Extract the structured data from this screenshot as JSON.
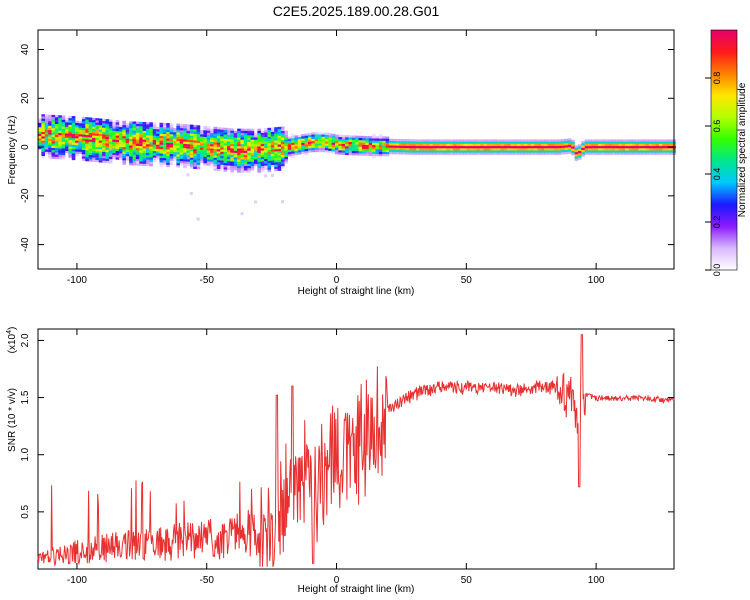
{
  "figure": {
    "title": "C2E5.2025.189.00.28.G01"
  },
  "colors": {
    "colormap": [
      "#ffffff",
      "#d9b8ff",
      "#8c1aff",
      "#1a1aff",
      "#00c8ff",
      "#00e68c",
      "#33ff00",
      "#b3ff00",
      "#ffe600",
      "#ff8000",
      "#ff1a1a",
      "#e6006e"
    ],
    "snr_line": "#e83030",
    "axes": "#000000"
  },
  "chart_data": [
    {
      "type": "heatmap",
      "xlabel": "Height of straight line (km)",
      "ylabel": "Frequency (Hz)",
      "xlim": [
        -115,
        130
      ],
      "ylim": [
        -50,
        48
      ],
      "xticks": [
        -100,
        -50,
        0,
        50,
        100
      ],
      "yticks": [
        -40,
        -20,
        0,
        20,
        40
      ],
      "colorbar": {
        "label": "Normalized spectral amplitude",
        "range": [
          0.0,
          1.0
        ],
        "ticks": [
          0.0,
          0.2,
          0.4,
          0.6,
          0.8
        ]
      },
      "ridge": {
        "x": [
          -115,
          -100,
          -90,
          -80,
          -70,
          -60,
          -50,
          -40,
          -30,
          -20,
          -15,
          -10,
          -5,
          0,
          10,
          30,
          60,
          85,
          90,
          92,
          95,
          130
        ],
        "y": [
          5,
          4,
          3,
          2,
          1.5,
          1,
          0,
          -1,
          -1,
          0,
          1,
          2,
          2,
          1,
          0.5,
          0,
          0,
          0,
          0.5,
          -3,
          0,
          0
        ]
      },
      "grid": false
    },
    {
      "type": "line",
      "xlabel": "Height of straight line (km)",
      "ylabel": "SNR (10 * v/v)",
      "scale_label": "(x10",
      "scale_exponent": "4",
      "xlim": [
        -115,
        130
      ],
      "ylim": [
        0,
        2.1
      ],
      "xticks": [
        -100,
        -50,
        0,
        50,
        100
      ],
      "yticks": [
        0.5,
        1.0,
        1.5,
        2.0
      ],
      "ytick_labels": [
        "0.5",
        "1.0",
        "1.5",
        "2.0"
      ],
      "envelope": {
        "x": [
          -115,
          -100,
          -90,
          -80,
          -70,
          -60,
          -50,
          -40,
          -35,
          -30,
          -25,
          -22,
          -18,
          -15,
          -10,
          -5,
          0,
          5,
          10,
          15,
          20,
          25,
          30,
          40,
          50,
          60,
          70,
          80,
          85,
          90,
          92,
          93,
          94,
          96,
          100,
          110,
          120,
          130
        ],
        "y": [
          0.08,
          0.15,
          0.18,
          0.2,
          0.22,
          0.24,
          0.26,
          0.28,
          0.3,
          0.32,
          0.45,
          0.6,
          0.75,
          0.8,
          0.85,
          0.9,
          1.0,
          1.1,
          1.2,
          1.3,
          1.4,
          1.48,
          1.55,
          1.6,
          1.6,
          1.6,
          1.58,
          1.6,
          1.6,
          1.55,
          1.5,
          1.4,
          1.55,
          1.52,
          1.5,
          1.5,
          1.5,
          1.48
        ]
      },
      "events": [
        {
          "x": 93.5,
          "y": 0.72
        },
        {
          "x": 94.5,
          "y": 2.05
        },
        {
          "x": -23,
          "y": 1.52
        },
        {
          "x": -17,
          "y": 1.6
        },
        {
          "x": -9,
          "y": 0.05
        }
      ],
      "grid": false
    }
  ]
}
